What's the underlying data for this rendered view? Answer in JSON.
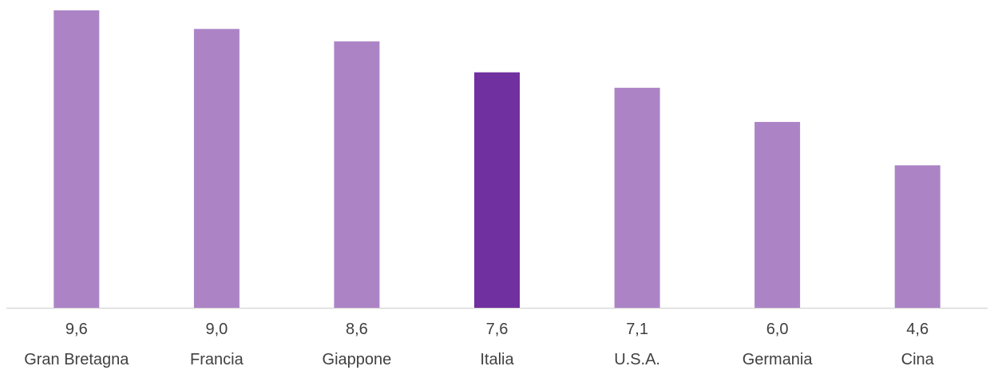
{
  "chart_data": {
    "type": "bar",
    "title": "",
    "xlabel": "",
    "ylabel": "",
    "categories": [
      "Gran Bretagna",
      "Francia",
      "Giappone",
      "Italia",
      "U.S.A.",
      "Germania",
      "Cina"
    ],
    "values": [
      9.6,
      9.0,
      8.6,
      7.6,
      7.1,
      6.0,
      4.6
    ],
    "value_labels": [
      "9,6",
      "9,0",
      "8,6",
      "7,6",
      "7,1",
      "6,0",
      "4,6"
    ],
    "ylim": [
      0,
      9.6
    ],
    "grid": false,
    "legend": "none",
    "colors": {
      "bar": "#ac84c6",
      "highlight": "#7030a0",
      "axis": "#d9d9d9",
      "text": "#404040"
    },
    "highlight_category": "Italia"
  }
}
